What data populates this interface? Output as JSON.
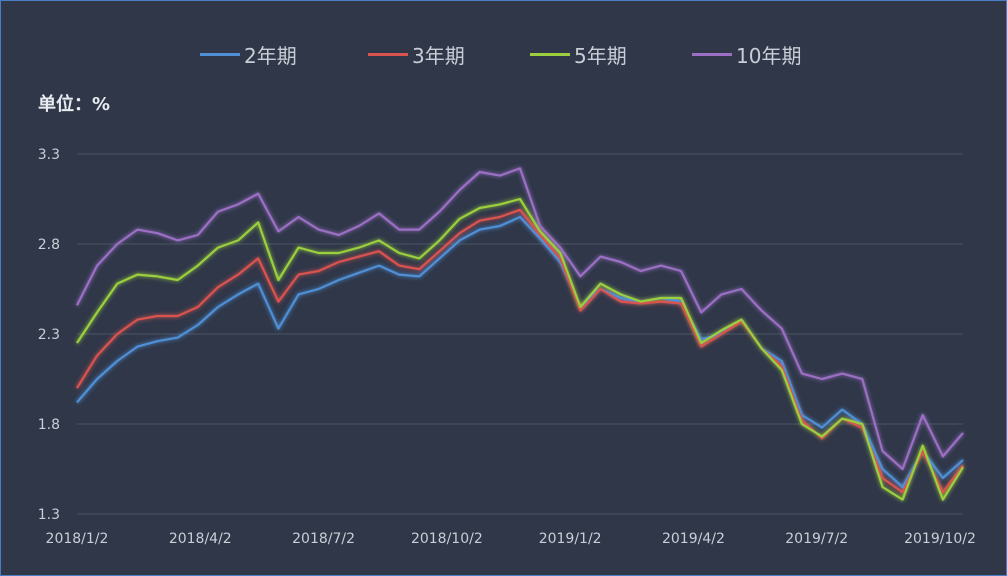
{
  "chart_data": {
    "type": "line",
    "unit_label": "单位：%",
    "y_ticks": [
      "3.3",
      "2.8",
      "2.3",
      "1.8",
      "1.3"
    ],
    "ylim": [
      1.3,
      3.3
    ],
    "x_ticks": [
      "2018/1/2",
      "2018/4/2",
      "2018/7/2",
      "2018/10/2",
      "2019/1/2",
      "2019/4/2",
      "2019/7/2",
      "2019/10/2"
    ],
    "grid": true,
    "legend_position": "top",
    "x": [
      "2018/1/2",
      "2018/1/16",
      "2018/2/1",
      "2018/2/14",
      "2018/3/1",
      "2018/3/15",
      "2018/4/2",
      "2018/4/16",
      "2018/5/2",
      "2018/5/16",
      "2018/5/25",
      "2018/6/1",
      "2018/6/15",
      "2018/7/2",
      "2018/7/16",
      "2018/8/1",
      "2018/8/15",
      "2018/9/3",
      "2018/9/17",
      "2018/10/2",
      "2018/10/16",
      "2018/11/1",
      "2018/11/15",
      "2018/12/3",
      "2018/12/17",
      "2019/1/2",
      "2019/1/16",
      "2019/2/1",
      "2019/2/15",
      "2019/3/1",
      "2019/3/15",
      "2019/4/2",
      "2019/4/16",
      "2019/5/2",
      "2019/5/16",
      "2019/6/3",
      "2019/6/17",
      "2019/7/2",
      "2019/7/16",
      "2019/8/1",
      "2019/8/15",
      "2019/9/2",
      "2019/9/16",
      "2019/10/2",
      "2019/10/12"
    ],
    "series": [
      {
        "name": "2年期",
        "color": "#4f8fd6",
        "values": [
          1.92,
          2.05,
          2.15,
          2.23,
          2.26,
          2.28,
          2.35,
          2.45,
          2.52,
          2.58,
          2.33,
          2.52,
          2.55,
          2.6,
          2.64,
          2.68,
          2.63,
          2.62,
          2.72,
          2.82,
          2.88,
          2.9,
          2.95,
          2.83,
          2.7,
          2.45,
          2.55,
          2.5,
          2.48,
          2.5,
          2.48,
          2.27,
          2.3,
          2.38,
          2.22,
          2.15,
          1.85,
          1.78,
          1.88,
          1.8,
          1.55,
          1.45,
          1.65,
          1.5,
          1.6
        ]
      },
      {
        "name": "3年期",
        "color": "#d9534f",
        "values": [
          2.0,
          2.18,
          2.3,
          2.38,
          2.4,
          2.4,
          2.45,
          2.56,
          2.63,
          2.72,
          2.48,
          2.63,
          2.65,
          2.7,
          2.73,
          2.76,
          2.68,
          2.66,
          2.76,
          2.86,
          2.93,
          2.95,
          2.99,
          2.85,
          2.72,
          2.43,
          2.55,
          2.48,
          2.47,
          2.48,
          2.47,
          2.23,
          2.3,
          2.37,
          2.22,
          2.12,
          1.82,
          1.72,
          1.83,
          1.78,
          1.5,
          1.42,
          1.65,
          1.42,
          1.57
        ]
      },
      {
        "name": "5年期",
        "color": "#9bcf3d",
        "values": [
          2.25,
          2.42,
          2.58,
          2.63,
          2.62,
          2.6,
          2.68,
          2.78,
          2.82,
          2.92,
          2.6,
          2.78,
          2.75,
          2.75,
          2.78,
          2.82,
          2.75,
          2.72,
          2.82,
          2.94,
          3.0,
          3.02,
          3.05,
          2.87,
          2.75,
          2.45,
          2.58,
          2.52,
          2.48,
          2.5,
          2.5,
          2.25,
          2.32,
          2.38,
          2.22,
          2.1,
          1.8,
          1.73,
          1.83,
          1.8,
          1.45,
          1.38,
          1.68,
          1.38,
          1.56
        ]
      },
      {
        "name": "10年期",
        "color": "#9b6fc4",
        "values": [
          2.46,
          2.68,
          2.8,
          2.88,
          2.86,
          2.82,
          2.85,
          2.98,
          3.02,
          3.08,
          2.87,
          2.95,
          2.88,
          2.85,
          2.9,
          2.97,
          2.88,
          2.88,
          2.98,
          3.1,
          3.2,
          3.18,
          3.22,
          2.9,
          2.78,
          2.62,
          2.73,
          2.7,
          2.65,
          2.68,
          2.65,
          2.42,
          2.52,
          2.55,
          2.43,
          2.33,
          2.08,
          2.05,
          2.08,
          2.05,
          1.65,
          1.55,
          1.85,
          1.62,
          1.75
        ]
      }
    ]
  }
}
